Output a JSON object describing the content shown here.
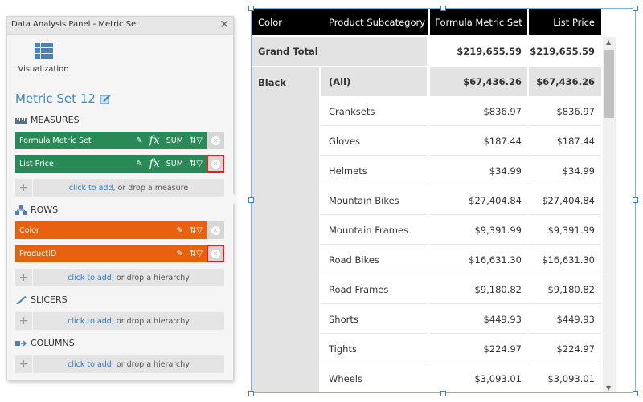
{
  "panel": {
    "title": "Data Analysis Panel - Metric Set",
    "visualization_label": "Visualization",
    "metric_set_name": "Metric Set 12",
    "sections": {
      "measures": "MEASURES",
      "rows": "ROWS",
      "slicers": "SLICERS",
      "columns": "COLUMNS"
    },
    "measures": [
      {
        "label": "Formula Metric Set",
        "agg": "SUM"
      },
      {
        "label": "List Price",
        "agg": "SUM"
      }
    ],
    "rows": [
      {
        "label": "Color"
      },
      {
        "label": "ProductID"
      }
    ],
    "drop": {
      "click_to_add": "click to add,",
      "measure_suffix": "or drop a measure",
      "hierarchy_suffix": "or drop a hierarchy"
    },
    "fx_label": "fx"
  },
  "table": {
    "headers": [
      "Color",
      "Product Subcategory",
      "Formula Metric Set",
      "List Price"
    ],
    "grand_total": {
      "label": "Grand Total",
      "formula": "$219,655.59",
      "list_price": "$219,655.59"
    },
    "group": {
      "color": "Black",
      "all_label": "(All)",
      "all_formula": "$67,436.26",
      "all_list_price": "$67,436.26"
    },
    "rows": [
      {
        "sub": "Cranksets",
        "formula": "$836.97",
        "list": "$836.97"
      },
      {
        "sub": "Gloves",
        "formula": "$187.44",
        "list": "$187.44"
      },
      {
        "sub": "Helmets",
        "formula": "$34.99",
        "list": "$34.99"
      },
      {
        "sub": "Mountain Bikes",
        "formula": "$27,404.84",
        "list": "$27,404.84"
      },
      {
        "sub": "Mountain Frames",
        "formula": "$9,391.99",
        "list": "$9,391.99"
      },
      {
        "sub": "Road Bikes",
        "formula": "$16,631.30",
        "list": "$16,631.30"
      },
      {
        "sub": "Road Frames",
        "formula": "$9,180.82",
        "list": "$9,180.82"
      },
      {
        "sub": "Shorts",
        "formula": "$449.93",
        "list": "$449.93"
      },
      {
        "sub": "Tights",
        "formula": "$224.97",
        "list": "$224.97"
      },
      {
        "sub": "Wheels",
        "formula": "$3,093.01",
        "list": "$3,093.01"
      }
    ]
  },
  "colors": {
    "measure_pill": "#2a8a57",
    "row_pill": "#e8620e",
    "link": "#2f7ac0",
    "highlight": "#e02020"
  }
}
